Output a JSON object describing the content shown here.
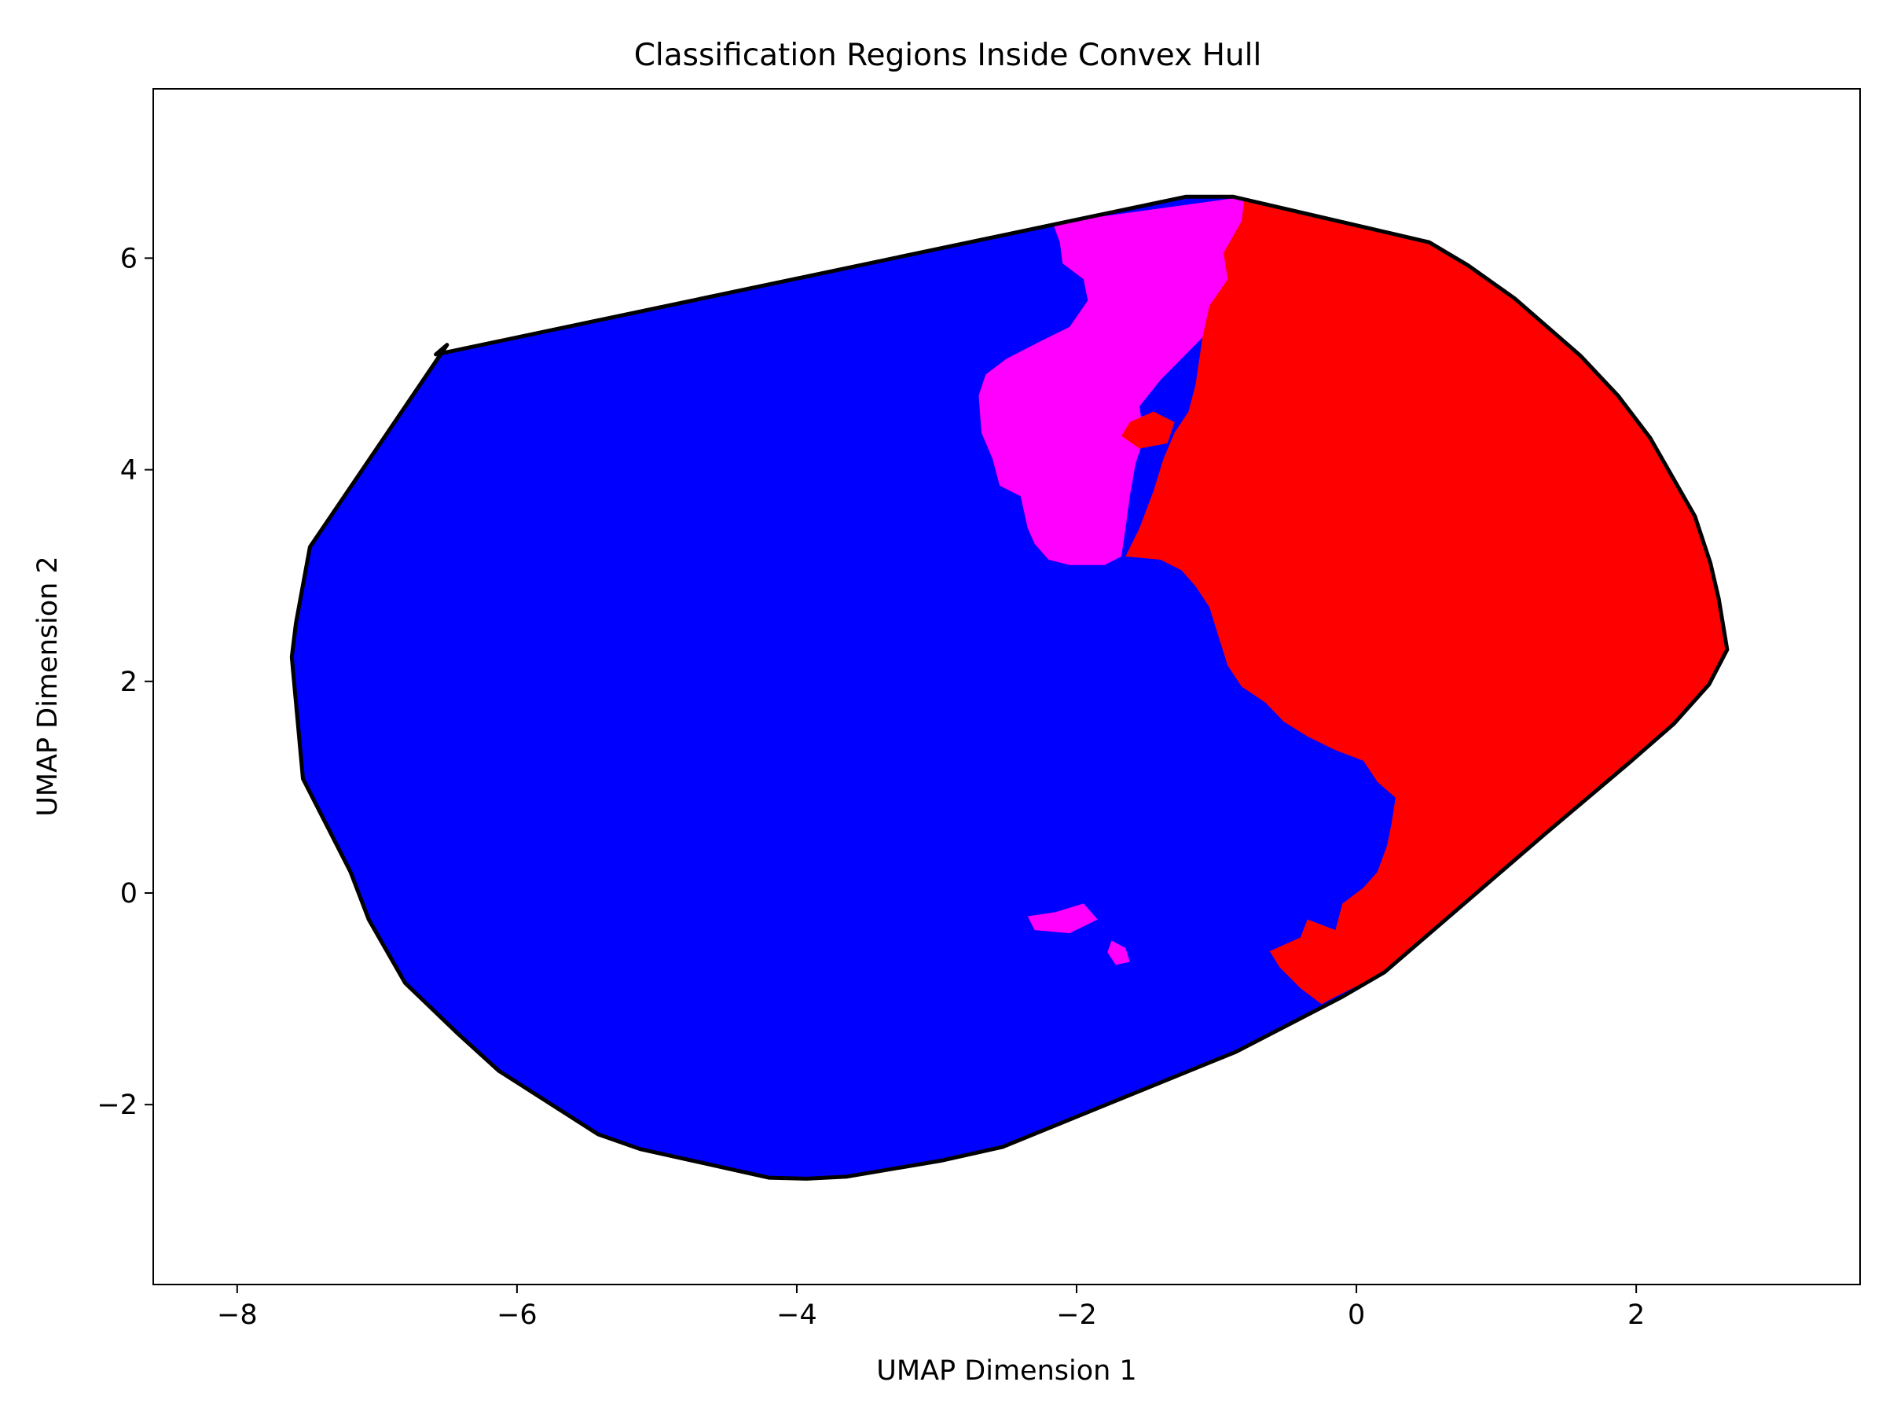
{
  "chart_data": {
    "type": "area",
    "title": "Classification Regions Inside Convex Hull",
    "xlabel": "UMAP Dimension 1",
    "ylabel": "UMAP Dimension 2",
    "xlim": [
      -8.6,
      3.6
    ],
    "ylim": [
      -3.7,
      7.6
    ],
    "xticks": [
      -8,
      -6,
      -4,
      -2,
      0,
      2
    ],
    "yticks": [
      -2,
      0,
      2,
      4,
      6
    ],
    "grid": false,
    "legend": "none",
    "colors": {
      "hull_outline": "#000000",
      "blue_region": "#0000ff",
      "magenta_region": "#ff00ff",
      "red_region": "#ff0000"
    },
    "hull": [
      [
        -1.22,
        6.58
      ],
      [
        -0.88,
        6.58
      ],
      [
        0.52,
        6.15
      ],
      [
        0.8,
        5.93
      ],
      [
        1.13,
        5.62
      ],
      [
        1.6,
        5.08
      ],
      [
        1.87,
        4.7
      ],
      [
        2.1,
        4.3
      ],
      [
        2.42,
        3.56
      ],
      [
        2.53,
        3.12
      ],
      [
        2.59,
        2.78
      ],
      [
        2.65,
        2.3
      ],
      [
        2.52,
        1.97
      ],
      [
        2.27,
        1.6
      ],
      [
        1.95,
        1.23
      ],
      [
        1.35,
        0.56
      ],
      [
        0.2,
        -0.75
      ],
      [
        -0.1,
        -0.98
      ],
      [
        -0.86,
        -1.5
      ],
      [
        -2.53,
        -2.4
      ],
      [
        -2.97,
        -2.53
      ],
      [
        -3.64,
        -2.68
      ],
      [
        -3.93,
        -2.7
      ],
      [
        -4.2,
        -2.69
      ],
      [
        -5.12,
        -2.42
      ],
      [
        -5.42,
        -2.28
      ],
      [
        -6.13,
        -1.68
      ],
      [
        -6.43,
        -1.32
      ],
      [
        -6.8,
        -0.85
      ],
      [
        -7.06,
        -0.25
      ],
      [
        -7.19,
        0.2
      ],
      [
        -7.53,
        1.08
      ],
      [
        -7.61,
        2.23
      ],
      [
        -7.58,
        2.55
      ],
      [
        -7.48,
        3.27
      ],
      [
        -6.5,
        5.18
      ],
      [
        -6.58,
        5.09
      ]
    ],
    "magenta_region": [
      [
        -2.17,
        6.33
      ],
      [
        -0.8,
        6.58
      ],
      [
        -0.82,
        6.35
      ],
      [
        -0.95,
        6.05
      ],
      [
        -0.92,
        5.8
      ],
      [
        -1.05,
        5.55
      ],
      [
        -1.1,
        5.25
      ],
      [
        -1.25,
        5.05
      ],
      [
        -1.4,
        4.85
      ],
      [
        -1.55,
        4.6
      ],
      [
        -1.52,
        4.3
      ],
      [
        -1.58,
        4.05
      ],
      [
        -1.62,
        3.75
      ],
      [
        -1.65,
        3.45
      ],
      [
        -1.68,
        3.18
      ],
      [
        -1.8,
        3.1
      ],
      [
        -2.05,
        3.1
      ],
      [
        -2.2,
        3.15
      ],
      [
        -2.3,
        3.3
      ],
      [
        -2.35,
        3.45
      ],
      [
        -2.4,
        3.75
      ],
      [
        -2.55,
        3.85
      ],
      [
        -2.6,
        4.1
      ],
      [
        -2.68,
        4.35
      ],
      [
        -2.7,
        4.7
      ],
      [
        -2.65,
        4.9
      ],
      [
        -2.5,
        5.05
      ],
      [
        -2.25,
        5.22
      ],
      [
        -2.05,
        5.35
      ],
      [
        -1.92,
        5.6
      ],
      [
        -1.95,
        5.8
      ],
      [
        -2.1,
        5.95
      ],
      [
        -2.12,
        6.15
      ]
    ],
    "magenta_islands": [
      [
        [
          -2.35,
          -0.22
        ],
        [
          -2.15,
          -0.18
        ],
        [
          -1.95,
          -0.1
        ],
        [
          -1.85,
          -0.25
        ],
        [
          -2.05,
          -0.38
        ],
        [
          -2.3,
          -0.35
        ]
      ],
      [
        [
          -1.75,
          -0.45
        ],
        [
          -1.65,
          -0.52
        ],
        [
          -1.62,
          -0.65
        ],
        [
          -1.72,
          -0.68
        ],
        [
          -1.78,
          -0.56
        ]
      ]
    ],
    "red_region": [
      [
        -0.8,
        6.58
      ],
      [
        -0.88,
        6.58
      ],
      [
        0.52,
        6.15
      ],
      [
        0.8,
        5.93
      ],
      [
        1.13,
        5.62
      ],
      [
        1.6,
        5.08
      ],
      [
        1.87,
        4.7
      ],
      [
        2.1,
        4.3
      ],
      [
        2.42,
        3.56
      ],
      [
        2.53,
        3.12
      ],
      [
        2.59,
        2.78
      ],
      [
        2.65,
        2.3
      ],
      [
        2.52,
        1.97
      ],
      [
        2.27,
        1.6
      ],
      [
        1.95,
        1.23
      ],
      [
        1.35,
        0.56
      ],
      [
        0.2,
        -0.75
      ],
      [
        -0.15,
        -0.98
      ],
      [
        -0.25,
        -1.05
      ],
      [
        -0.4,
        -0.9
      ],
      [
        -0.55,
        -0.7
      ],
      [
        -0.62,
        -0.55
      ],
      [
        -0.4,
        -0.42
      ],
      [
        -0.35,
        -0.25
      ],
      [
        -0.15,
        -0.35
      ],
      [
        -0.1,
        -0.1
      ],
      [
        0.05,
        0.05
      ],
      [
        0.15,
        0.2
      ],
      [
        0.22,
        0.45
      ],
      [
        0.25,
        0.65
      ],
      [
        0.28,
        0.9
      ],
      [
        0.15,
        1.05
      ],
      [
        0.05,
        1.25
      ],
      [
        -0.15,
        1.35
      ],
      [
        -0.35,
        1.48
      ],
      [
        -0.52,
        1.62
      ],
      [
        -0.65,
        1.8
      ],
      [
        -0.82,
        1.95
      ],
      [
        -0.92,
        2.15
      ],
      [
        -0.98,
        2.4
      ],
      [
        -1.05,
        2.7
      ],
      [
        -1.15,
        2.9
      ],
      [
        -1.25,
        3.05
      ],
      [
        -1.4,
        3.15
      ],
      [
        -1.65,
        3.18
      ],
      [
        -1.55,
        3.45
      ],
      [
        -1.45,
        3.8
      ],
      [
        -1.38,
        4.1
      ],
      [
        -1.3,
        4.35
      ],
      [
        -1.2,
        4.55
      ],
      [
        -1.15,
        4.8
      ],
      [
        -1.1,
        5.25
      ],
      [
        -1.05,
        5.55
      ],
      [
        -0.92,
        5.8
      ],
      [
        -0.95,
        6.05
      ],
      [
        -0.82,
        6.35
      ]
    ],
    "red_islands": [
      [
        [
          -1.62,
          4.45
        ],
        [
          -1.45,
          4.55
        ],
        [
          -1.3,
          4.45
        ],
        [
          -1.35,
          4.25
        ],
        [
          -1.55,
          4.2
        ],
        [
          -1.68,
          4.32
        ]
      ]
    ]
  }
}
